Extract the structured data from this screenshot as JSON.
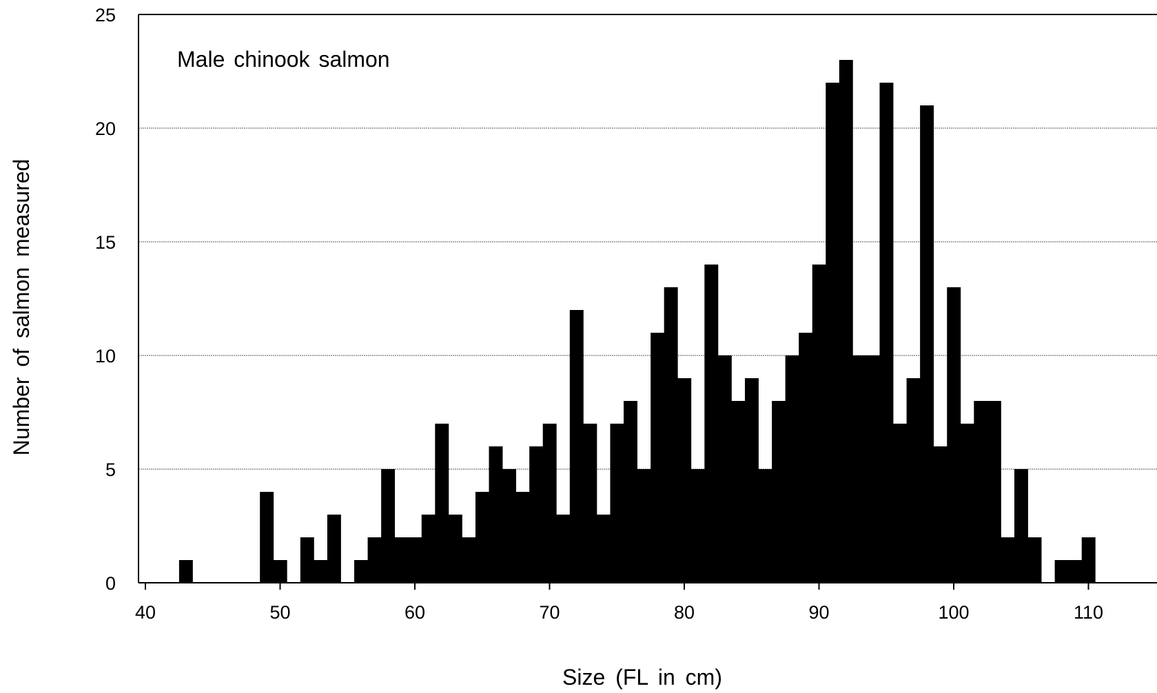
{
  "chart_data": {
    "type": "bar",
    "annotation": "Male chinook salmon",
    "xlabel": "Size (FL in cm)",
    "ylabel": "Number of salmon measured",
    "xlim": [
      39.5,
      116
    ],
    "ylim": [
      0,
      25
    ],
    "xticks": [
      40,
      50,
      60,
      70,
      80,
      90,
      100,
      110
    ],
    "yticks": [
      0,
      5,
      10,
      15,
      20,
      25
    ],
    "grid": "horizontal dotted lines at y ticks",
    "bar_color": "#000000",
    "x": [
      43,
      44,
      45,
      46,
      47,
      48,
      49,
      50,
      51,
      52,
      53,
      54,
      55,
      56,
      57,
      58,
      59,
      60,
      61,
      62,
      63,
      64,
      65,
      66,
      67,
      68,
      69,
      70,
      71,
      72,
      73,
      74,
      75,
      76,
      77,
      78,
      79,
      80,
      81,
      82,
      83,
      84,
      85,
      86,
      87,
      88,
      89,
      90,
      91,
      92,
      93,
      94,
      95,
      96,
      97,
      98,
      99,
      100,
      101,
      102,
      103,
      104,
      105,
      106,
      107,
      108,
      109,
      110
    ],
    "values": [
      1,
      0,
      0,
      0,
      0,
      0,
      4,
      1,
      0,
      2,
      1,
      3,
      0,
      1,
      2,
      5,
      2,
      2,
      3,
      7,
      3,
      2,
      4,
      6,
      5,
      4,
      6,
      7,
      3,
      12,
      7,
      3,
      7,
      8,
      5,
      11,
      13,
      9,
      5,
      14,
      10,
      8,
      9,
      5,
      8,
      10,
      11,
      14,
      22,
      23,
      10,
      10,
      22,
      7,
      9,
      21,
      6,
      13,
      7,
      8,
      8,
      2,
      5,
      2,
      0,
      1,
      1,
      2
    ]
  }
}
